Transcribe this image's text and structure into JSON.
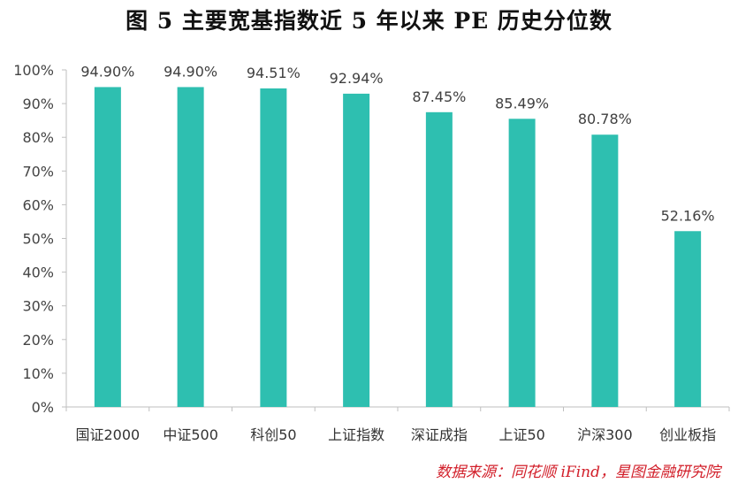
{
  "figure": {
    "title": "图 5   主要宽基指数近 5 年以来 PE 历史分位数",
    "source": "数据来源：同花顺 iFind，星图金融研究院"
  },
  "chart_data": {
    "type": "bar",
    "categories": [
      "国证2000",
      "中证500",
      "科创50",
      "上证指数",
      "深证成指",
      "上证50",
      "沪深300",
      "创业板指"
    ],
    "values": [
      94.9,
      94.9,
      94.51,
      92.94,
      87.45,
      85.49,
      80.78,
      52.16
    ],
    "data_labels": [
      "94.90%",
      "94.90%",
      "94.51%",
      "92.94%",
      "87.45%",
      "85.49%",
      "80.78%",
      "52.16%"
    ],
    "ylim": [
      0,
      100
    ],
    "y_ticks": [
      0,
      10,
      20,
      30,
      40,
      50,
      60,
      70,
      80,
      90,
      100
    ],
    "y_tick_labels": [
      "0%",
      "10%",
      "20%",
      "30%",
      "40%",
      "50%",
      "60%",
      "70%",
      "80%",
      "90%",
      "100%"
    ],
    "bar_color": "#2ebfb0",
    "grid": false,
    "legend": "none"
  }
}
